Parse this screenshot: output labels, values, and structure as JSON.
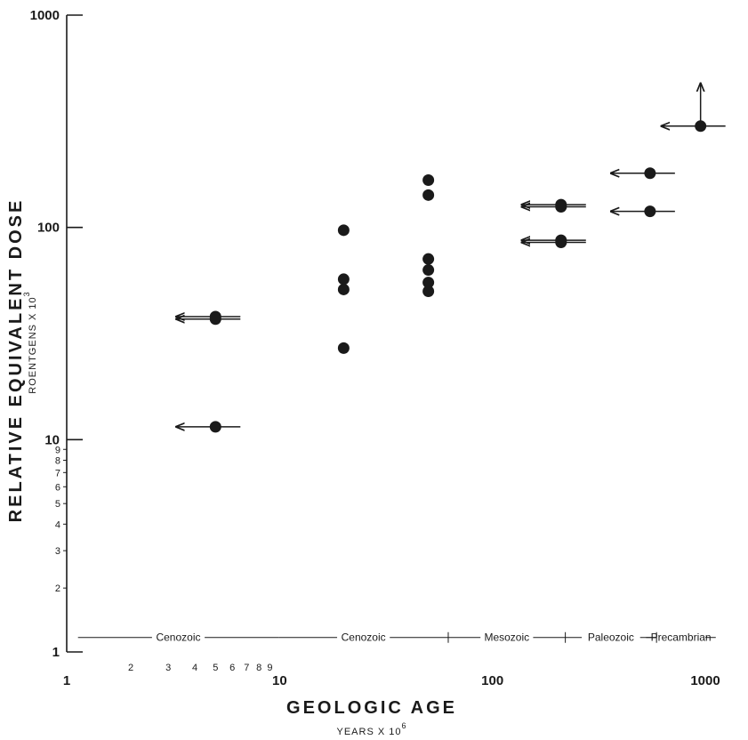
{
  "chart_data": {
    "type": "scatter",
    "xscale": "log",
    "yscale": "log",
    "xlim": [
      1,
      1000
    ],
    "ylim": [
      1,
      1000
    ],
    "xlabel": "GEOLOGIC AGE",
    "xlabel_sub": "YEARS X 10",
    "xlabel_sub_exp": "6",
    "ylabel": "RELATIVE EQUIVALENT DOSE",
    "ylabel_sub": "ROENTGENS X 10",
    "ylabel_sub_exp": "3",
    "x_major_ticks": [
      {
        "value": 1,
        "label": "1"
      },
      {
        "value": 10,
        "label": "10"
      },
      {
        "value": 100,
        "label": "100"
      },
      {
        "value": 1000,
        "label": "1000"
      }
    ],
    "x_minor_ticks": [
      {
        "value": 2,
        "label": "2"
      },
      {
        "value": 3,
        "label": "3"
      },
      {
        "value": 4,
        "label": "4"
      },
      {
        "value": 5,
        "label": "5"
      },
      {
        "value": 6,
        "label": "6"
      },
      {
        "value": 7,
        "label": "7"
      },
      {
        "value": 8,
        "label": "8"
      },
      {
        "value": 9,
        "label": "9"
      }
    ],
    "y_major_ticks": [
      {
        "value": 1,
        "label": "1"
      },
      {
        "value": 10,
        "label": "10"
      },
      {
        "value": 100,
        "label": "100"
      },
      {
        "value": 1000,
        "label": "1000"
      }
    ],
    "y_minor_ticks": [
      {
        "value": 2,
        "label": "2"
      },
      {
        "value": 3,
        "label": "3"
      },
      {
        "value": 4,
        "label": "4"
      },
      {
        "value": 5,
        "label": "5"
      },
      {
        "value": 6,
        "label": "6"
      },
      {
        "value": 7,
        "label": "7"
      },
      {
        "value": 8,
        "label": "8"
      },
      {
        "value": 9,
        "label": "9"
      }
    ],
    "points": [
      {
        "x": 5,
        "y": 38,
        "arrow": "left"
      },
      {
        "x": 5,
        "y": 37,
        "arrow": "left"
      },
      {
        "x": 5,
        "y": 11.5,
        "arrow": "left"
      },
      {
        "x": 20,
        "y": 97
      },
      {
        "x": 20,
        "y": 57
      },
      {
        "x": 20,
        "y": 51
      },
      {
        "x": 20,
        "y": 27
      },
      {
        "x": 50,
        "y": 167
      },
      {
        "x": 50,
        "y": 142
      },
      {
        "x": 50,
        "y": 71
      },
      {
        "x": 50,
        "y": 63
      },
      {
        "x": 50,
        "y": 55
      },
      {
        "x": 50,
        "y": 50
      },
      {
        "x": 210,
        "y": 128,
        "arrow": "left"
      },
      {
        "x": 210,
        "y": 125,
        "arrow": "left"
      },
      {
        "x": 210,
        "y": 87,
        "arrow": "left"
      },
      {
        "x": 210,
        "y": 85,
        "arrow": "left"
      },
      {
        "x": 550,
        "y": 180,
        "arrow": "left"
      },
      {
        "x": 550,
        "y": 119,
        "arrow": "left"
      },
      {
        "x": 950,
        "y": 300,
        "arrow": "left-right-up"
      }
    ],
    "eras": [
      {
        "label": "Cenozoic",
        "from": 1.13,
        "to": 9.9
      },
      {
        "label": "Cenozoic",
        "from": 9.9,
        "to": 62
      },
      {
        "label": "Mesozoic",
        "from": 62,
        "to": 220
      },
      {
        "label": "Paleozoic",
        "from": 220,
        "to": 590
      },
      {
        "label": "Precambrian",
        "from": 590,
        "to": 1000
      }
    ]
  }
}
